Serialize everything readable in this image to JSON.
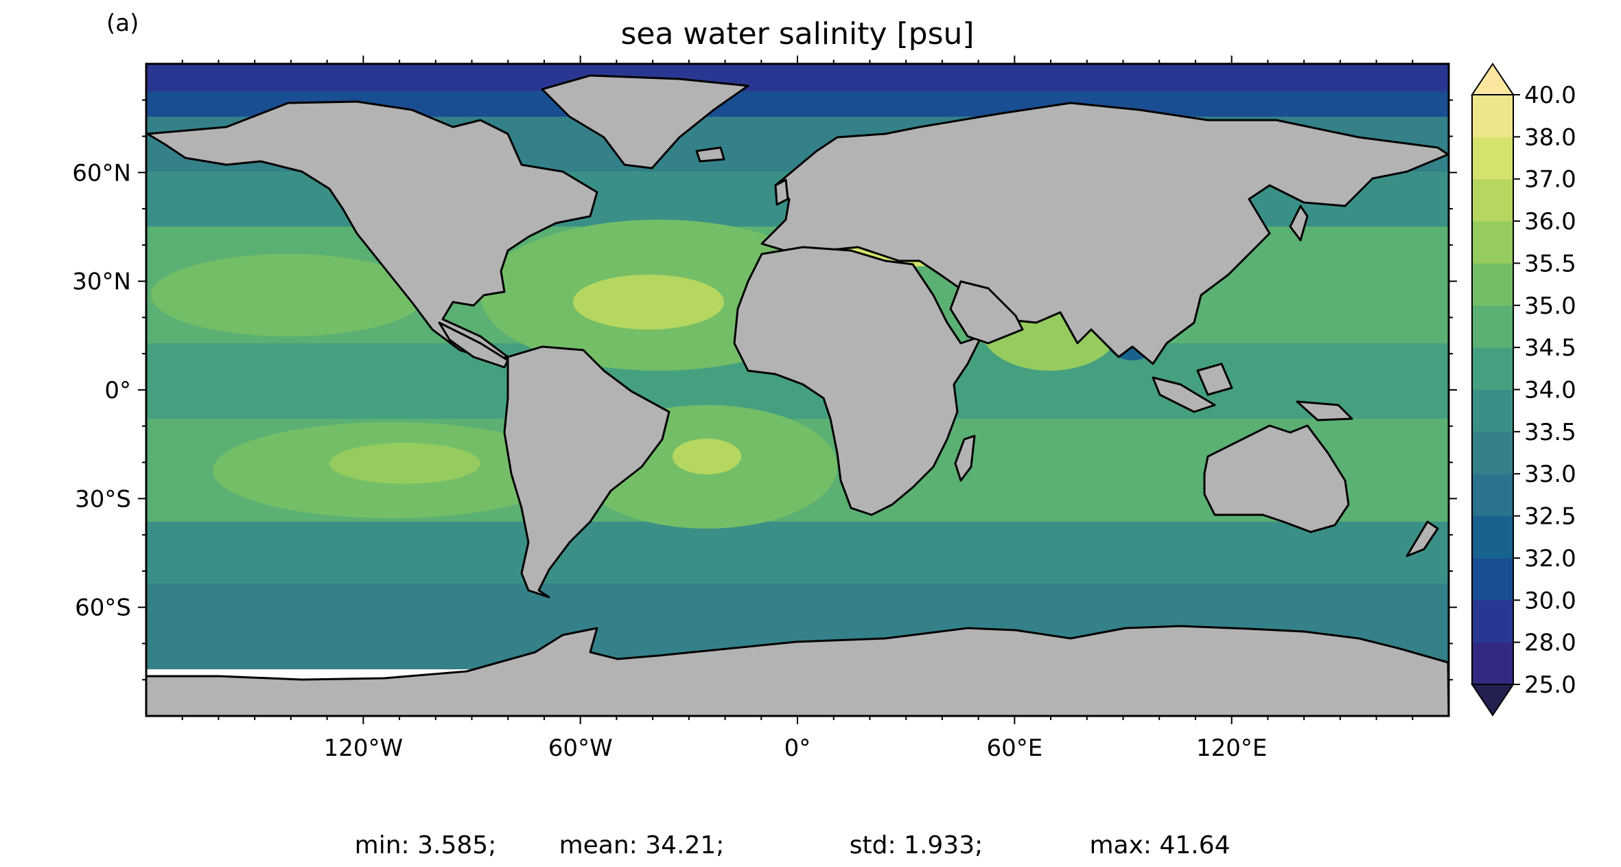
{
  "panel_label": "(a)",
  "title": "sea water salinity [psu]",
  "map": {
    "lat_ticks": [
      {
        "value": 60,
        "label": "60°N"
      },
      {
        "value": 30,
        "label": "30°N"
      },
      {
        "value": 0,
        "label": "0°"
      },
      {
        "value": -30,
        "label": "30°S"
      },
      {
        "value": -60,
        "label": "60°S"
      }
    ],
    "lon_ticks": [
      {
        "value": -120,
        "label": "120°W"
      },
      {
        "value": -60,
        "label": "60°W"
      },
      {
        "value": 0,
        "label": "0°"
      },
      {
        "value": 60,
        "label": "60°E"
      },
      {
        "value": 120,
        "label": "120°E"
      }
    ],
    "lon_range": [
      -180,
      180
    ],
    "lat_range": [
      -90,
      90
    ],
    "land_color": "#b3b3b3",
    "ice_color": "#ffffff"
  },
  "colorbar": {
    "extend": "both",
    "levels": [
      {
        "value": "25.0",
        "color": "#322a80"
      },
      {
        "value": "28.0",
        "color": "#2a3792"
      },
      {
        "value": "30.0",
        "color": "#1a4e92"
      },
      {
        "value": "32.0",
        "color": "#18628f"
      },
      {
        "value": "32.5",
        "color": "#2a728d"
      },
      {
        "value": "33.0",
        "color": "#348189"
      },
      {
        "value": "33.5",
        "color": "#3a9086"
      },
      {
        "value": "34.0",
        "color": "#45a080"
      },
      {
        "value": "34.5",
        "color": "#5bb073"
      },
      {
        "value": "35.0",
        "color": "#74be68"
      },
      {
        "value": "35.5",
        "color": "#95cb5f"
      },
      {
        "value": "36.0",
        "color": "#b6d75f"
      },
      {
        "value": "37.0",
        "color": "#d5e26c"
      },
      {
        "value": "38.0",
        "color": "#eee68a"
      },
      {
        "value": "40.0",
        "color": "#fbe6a0"
      }
    ],
    "under_color": "#23204f",
    "over_color": "#fbe6a0"
  },
  "stats": {
    "min": "min: 3.585;",
    "mean": "mean: 34.21;",
    "std": "std: 1.933;",
    "max": "max: 41.64"
  }
}
